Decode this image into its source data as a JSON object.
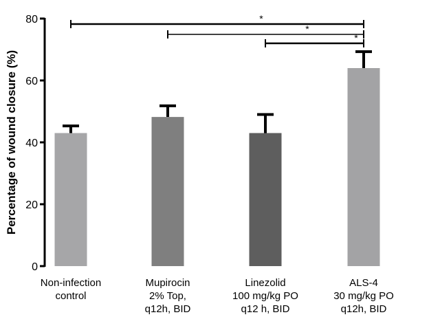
{
  "chart_data": {
    "type": "bar",
    "title": "",
    "xlabel": "",
    "ylabel": "Percentage of wound closure (%)",
    "ylim": [
      0,
      80
    ],
    "yticks": [
      0,
      20,
      40,
      60,
      80
    ],
    "grid": false,
    "categories": [
      [
        "Non-infection",
        "control"
      ],
      [
        "Mupirocin",
        "2% Top,",
        "q12h, BID"
      ],
      [
        "Linezolid",
        "100 mg/kg PO",
        "q12 h, BID"
      ],
      [
        "ALS-4",
        "30 mg/kg PO",
        "q12h, BID"
      ]
    ],
    "values": [
      43,
      48.2,
      43,
      64
    ],
    "error_upper": [
      45.3,
      51.8,
      49,
      69.3
    ],
    "colors": [
      "#a6a6a8",
      "#7f7f7f",
      "#5e5e5e",
      "#a3a3a5"
    ],
    "significance": [
      {
        "from": 0,
        "to": 3,
        "label": "*"
      },
      {
        "from": 1,
        "to": 3,
        "label": "*"
      },
      {
        "from": 2,
        "to": 3,
        "label": "*"
      }
    ]
  }
}
